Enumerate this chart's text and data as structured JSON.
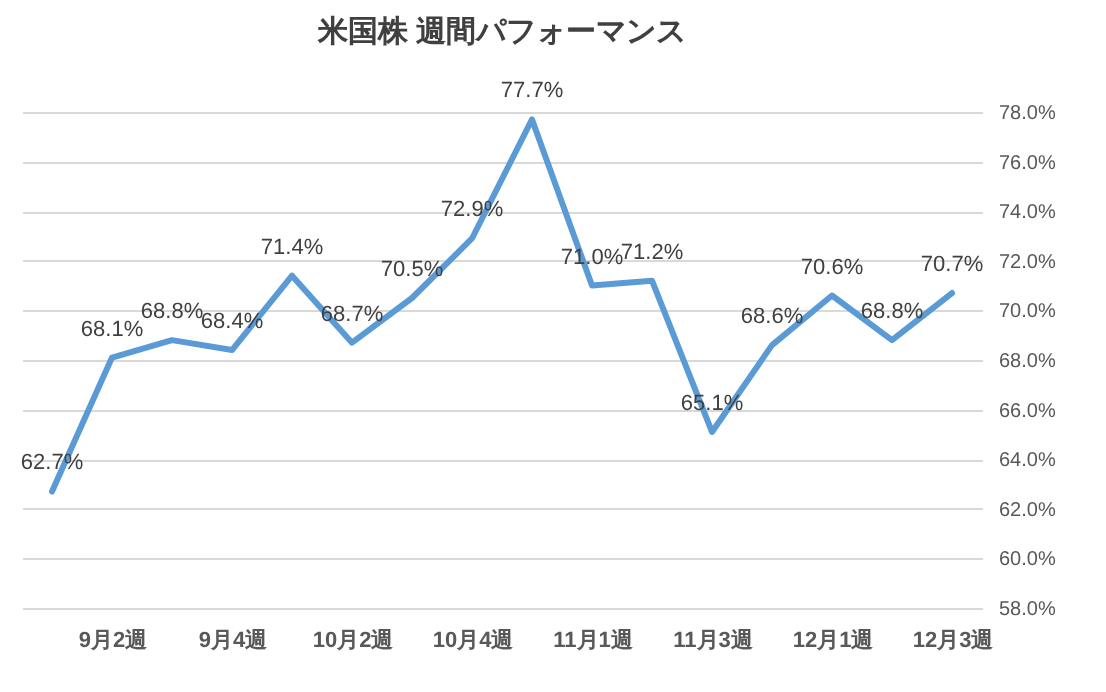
{
  "chart_data": {
    "type": "line",
    "title": "米国株 週間パフォーマンス",
    "categories": [
      null,
      "9月2週",
      null,
      "9月4週",
      null,
      "10月2週",
      null,
      "10月4週",
      null,
      "11月1週",
      null,
      "11月3週",
      null,
      "12月1週",
      null,
      "12月3週"
    ],
    "series": [
      {
        "color": "#5b9bd5",
        "values": [
          62.7,
          68.1,
          68.8,
          68.4,
          71.4,
          68.7,
          70.5,
          72.9,
          77.7,
          71.0,
          71.2,
          65.1,
          68.6,
          70.6,
          68.8,
          70.7
        ],
        "value_labels": [
          "62.7%",
          "68.1%",
          "68.8%",
          "68.4%",
          "71.4%",
          "68.7%",
          "70.5%",
          "72.9%",
          "77.7%",
          "71.0%",
          "71.2%",
          "65.1%",
          "68.6%",
          "70.6%",
          "68.8%",
          "70.7%"
        ]
      }
    ],
    "ylim": [
      58,
      78
    ],
    "yticks": [
      {
        "value": 58,
        "label": "58.0%"
      },
      {
        "value": 60,
        "label": "60.0%"
      },
      {
        "value": 62,
        "label": "62.0%"
      },
      {
        "value": 64,
        "label": "64.0%"
      },
      {
        "value": 66,
        "label": "66.0%"
      },
      {
        "value": 68,
        "label": "68.0%"
      },
      {
        "value": 70,
        "label": "70.0%"
      },
      {
        "value": 72,
        "label": "72.0%"
      },
      {
        "value": 74,
        "label": "74.0%"
      },
      {
        "value": 76,
        "label": "76.0%"
      },
      {
        "value": 78,
        "label": "78.0%"
      }
    ],
    "grid": "y",
    "marker": "none",
    "line_style": "solid"
  }
}
